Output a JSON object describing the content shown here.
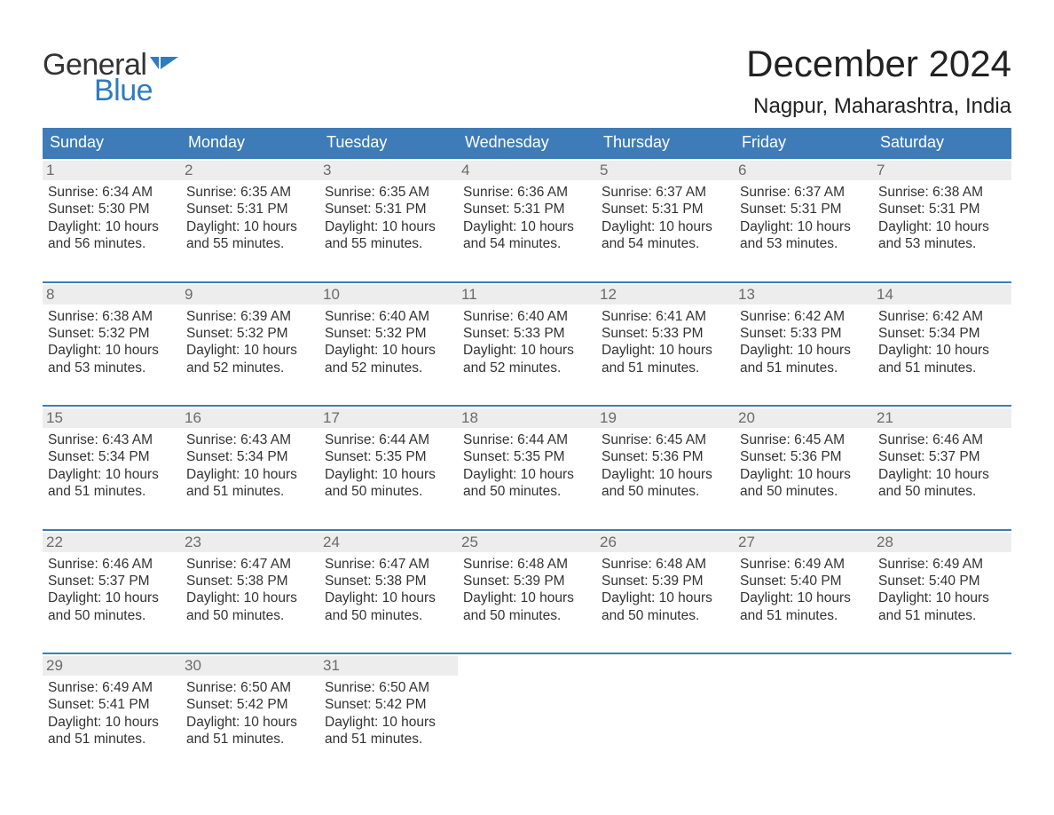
{
  "logo": {
    "word1": "General",
    "word2": "Blue",
    "word1_color": "#333333",
    "word2_color": "#2f7bbf"
  },
  "title": "December 2024",
  "location": "Nagpur, Maharashtra, India",
  "colors": {
    "header_bg": "#3d7cb8",
    "header_text": "#ffffff",
    "daynum_bg": "#ededed",
    "daynum_text": "#6b6b6b",
    "body_text": "#333333",
    "rule": "#3d7cb8",
    "page_bg": "#ffffff"
  },
  "dow": [
    "Sunday",
    "Monday",
    "Tuesday",
    "Wednesday",
    "Thursday",
    "Friday",
    "Saturday"
  ],
  "weeks": [
    [
      {
        "n": "1",
        "sunrise": "6:34 AM",
        "sunset": "5:30 PM",
        "day_h": "10",
        "day_m": "56"
      },
      {
        "n": "2",
        "sunrise": "6:35 AM",
        "sunset": "5:31 PM",
        "day_h": "10",
        "day_m": "55"
      },
      {
        "n": "3",
        "sunrise": "6:35 AM",
        "sunset": "5:31 PM",
        "day_h": "10",
        "day_m": "55"
      },
      {
        "n": "4",
        "sunrise": "6:36 AM",
        "sunset": "5:31 PM",
        "day_h": "10",
        "day_m": "54"
      },
      {
        "n": "5",
        "sunrise": "6:37 AM",
        "sunset": "5:31 PM",
        "day_h": "10",
        "day_m": "54"
      },
      {
        "n": "6",
        "sunrise": "6:37 AM",
        "sunset": "5:31 PM",
        "day_h": "10",
        "day_m": "53"
      },
      {
        "n": "7",
        "sunrise": "6:38 AM",
        "sunset": "5:31 PM",
        "day_h": "10",
        "day_m": "53"
      }
    ],
    [
      {
        "n": "8",
        "sunrise": "6:38 AM",
        "sunset": "5:32 PM",
        "day_h": "10",
        "day_m": "53"
      },
      {
        "n": "9",
        "sunrise": "6:39 AM",
        "sunset": "5:32 PM",
        "day_h": "10",
        "day_m": "52"
      },
      {
        "n": "10",
        "sunrise": "6:40 AM",
        "sunset": "5:32 PM",
        "day_h": "10",
        "day_m": "52"
      },
      {
        "n": "11",
        "sunrise": "6:40 AM",
        "sunset": "5:33 PM",
        "day_h": "10",
        "day_m": "52"
      },
      {
        "n": "12",
        "sunrise": "6:41 AM",
        "sunset": "5:33 PM",
        "day_h": "10",
        "day_m": "51"
      },
      {
        "n": "13",
        "sunrise": "6:42 AM",
        "sunset": "5:33 PM",
        "day_h": "10",
        "day_m": "51"
      },
      {
        "n": "14",
        "sunrise": "6:42 AM",
        "sunset": "5:34 PM",
        "day_h": "10",
        "day_m": "51"
      }
    ],
    [
      {
        "n": "15",
        "sunrise": "6:43 AM",
        "sunset": "5:34 PM",
        "day_h": "10",
        "day_m": "51"
      },
      {
        "n": "16",
        "sunrise": "6:43 AM",
        "sunset": "5:34 PM",
        "day_h": "10",
        "day_m": "51"
      },
      {
        "n": "17",
        "sunrise": "6:44 AM",
        "sunset": "5:35 PM",
        "day_h": "10",
        "day_m": "50"
      },
      {
        "n": "18",
        "sunrise": "6:44 AM",
        "sunset": "5:35 PM",
        "day_h": "10",
        "day_m": "50"
      },
      {
        "n": "19",
        "sunrise": "6:45 AM",
        "sunset": "5:36 PM",
        "day_h": "10",
        "day_m": "50"
      },
      {
        "n": "20",
        "sunrise": "6:45 AM",
        "sunset": "5:36 PM",
        "day_h": "10",
        "day_m": "50"
      },
      {
        "n": "21",
        "sunrise": "6:46 AM",
        "sunset": "5:37 PM",
        "day_h": "10",
        "day_m": "50"
      }
    ],
    [
      {
        "n": "22",
        "sunrise": "6:46 AM",
        "sunset": "5:37 PM",
        "day_h": "10",
        "day_m": "50"
      },
      {
        "n": "23",
        "sunrise": "6:47 AM",
        "sunset": "5:38 PM",
        "day_h": "10",
        "day_m": "50"
      },
      {
        "n": "24",
        "sunrise": "6:47 AM",
        "sunset": "5:38 PM",
        "day_h": "10",
        "day_m": "50"
      },
      {
        "n": "25",
        "sunrise": "6:48 AM",
        "sunset": "5:39 PM",
        "day_h": "10",
        "day_m": "50"
      },
      {
        "n": "26",
        "sunrise": "6:48 AM",
        "sunset": "5:39 PM",
        "day_h": "10",
        "day_m": "50"
      },
      {
        "n": "27",
        "sunrise": "6:49 AM",
        "sunset": "5:40 PM",
        "day_h": "10",
        "day_m": "51"
      },
      {
        "n": "28",
        "sunrise": "6:49 AM",
        "sunset": "5:40 PM",
        "day_h": "10",
        "day_m": "51"
      }
    ],
    [
      {
        "n": "29",
        "sunrise": "6:49 AM",
        "sunset": "5:41 PM",
        "day_h": "10",
        "day_m": "51"
      },
      {
        "n": "30",
        "sunrise": "6:50 AM",
        "sunset": "5:42 PM",
        "day_h": "10",
        "day_m": "51"
      },
      {
        "n": "31",
        "sunrise": "6:50 AM",
        "sunset": "5:42 PM",
        "day_h": "10",
        "day_m": "51"
      },
      null,
      null,
      null,
      null
    ]
  ],
  "labels": {
    "sunrise": "Sunrise: ",
    "sunset": "Sunset: ",
    "daylight1": "Daylight: ",
    "hours": " hours",
    "and": "and ",
    "minutes": " minutes."
  }
}
